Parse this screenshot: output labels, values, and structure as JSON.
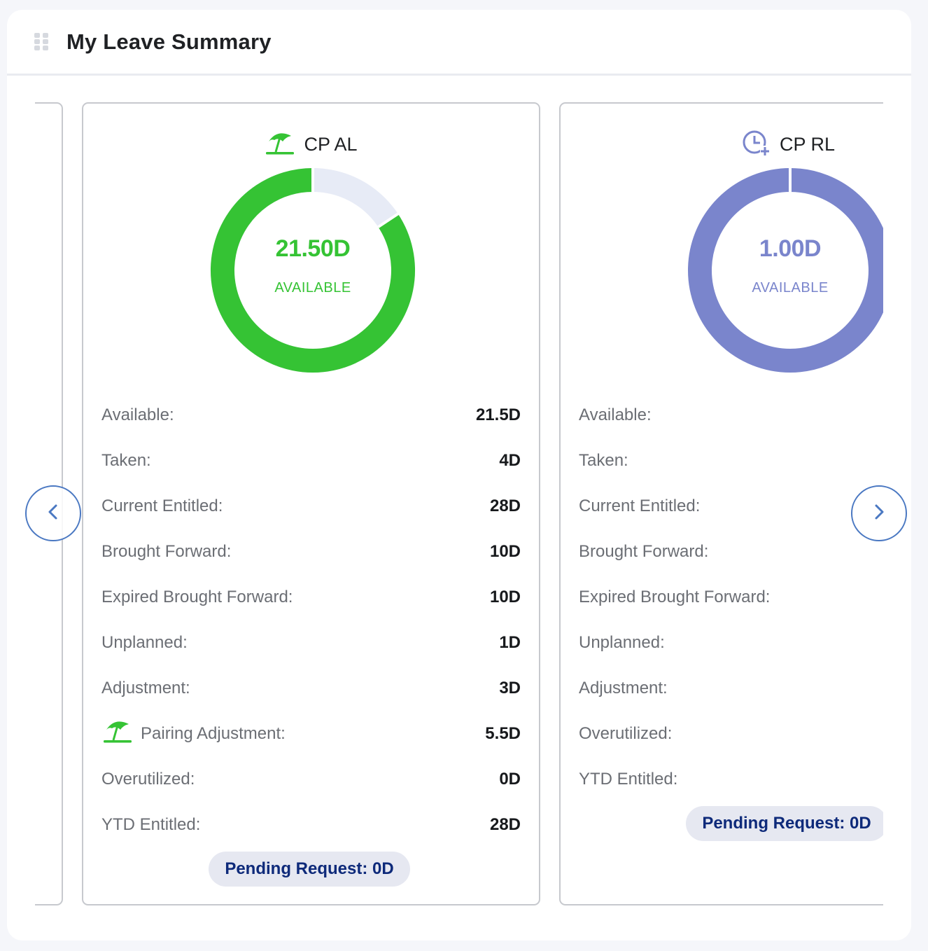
{
  "widget": {
    "title": "My Leave Summary"
  },
  "colors": {
    "al_green": "#35c334",
    "al_track": "#e7ebf6",
    "rl_purple": "#7a85cc",
    "pill_text": "#0e2a7a",
    "nav_blue": "#4a78c2"
  },
  "cards": {
    "al": {
      "name": "CP AL",
      "icon": "beach-umbrella-icon",
      "donut": {
        "value_text": "21.50D",
        "label": "AVAILABLE",
        "available": 21.5,
        "taken": 4,
        "total": 25.5
      },
      "rows": [
        {
          "label": "Available:",
          "value": "21.5D"
        },
        {
          "label": "Taken:",
          "value": "4D"
        },
        {
          "label": "Current Entitled:",
          "value": "28D"
        },
        {
          "label": "Brought Forward:",
          "value": "10D"
        },
        {
          "label": "Expired Brought Forward:",
          "value": "10D"
        },
        {
          "label": "Unplanned:",
          "value": "1D"
        },
        {
          "label": "Adjustment:",
          "value": "3D"
        },
        {
          "label": "Pairing Adjustment:",
          "value": "5.5D"
        },
        {
          "label": "Overutilized:",
          "value": "0D"
        },
        {
          "label": "YTD Entitled:",
          "value": "28D"
        }
      ],
      "pending": "Pending Request: 0D"
    },
    "rl": {
      "name": "CP RL",
      "icon": "clock-plus-icon",
      "donut": {
        "value_text": "1.00D",
        "label": "AVAILABLE",
        "available": 1,
        "total": 1
      },
      "rows": [
        {
          "label": "Available:"
        },
        {
          "label": "Taken:"
        },
        {
          "label": "Current Entitled:"
        },
        {
          "label": "Brought Forward:"
        },
        {
          "label": "Expired Brought Forward:"
        },
        {
          "label": "Unplanned:"
        },
        {
          "label": "Adjustment:"
        },
        {
          "label": "Overutilized:"
        },
        {
          "label": "YTD Entitled:"
        }
      ],
      "pending": "Pending Request: 0D"
    }
  },
  "navigation": {
    "prev_icon": "chevron-left-icon",
    "next_icon": "chevron-right-icon"
  }
}
